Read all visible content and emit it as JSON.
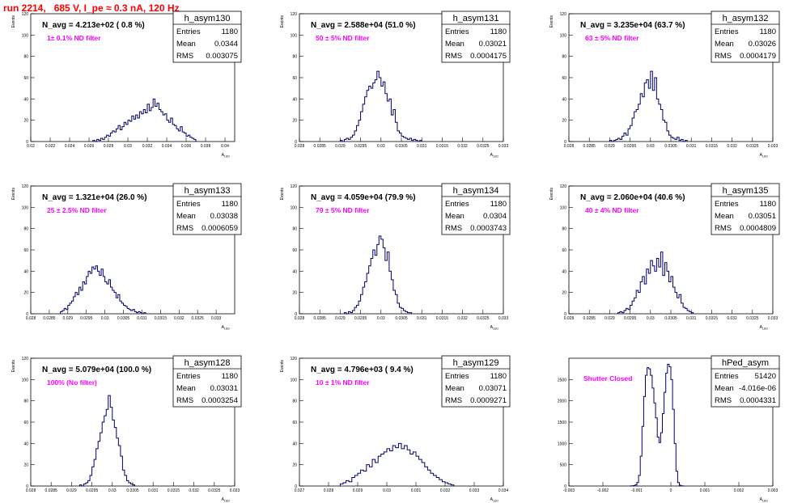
{
  "run_title": "run 2214,   685 V, I_pe ≈ 0.3 nA, 120 Hz",
  "colors": {
    "histogram": "#00006e",
    "filter_note": "#ff00ff",
    "title": "#ff0000",
    "axes": "#000000"
  },
  "chart_data": [
    {
      "type": "bar",
      "name": "h_asym130",
      "navg": "N_avg = 4.213e+02 ( 0.8 %)",
      "note": "1± 0.1% ND filter",
      "stats": [
        [
          "Entries",
          "1180"
        ],
        [
          "Mean",
          "0.0344"
        ],
        [
          "RMS",
          "0.003075"
        ]
      ],
      "ylabel": "Events",
      "xlabel": "A_{LED}",
      "xlim": [
        0.02,
        0.041
      ],
      "ylim": [
        0,
        120
      ],
      "xticks": [
        "0.02",
        "0.022",
        "0.024",
        "0.026",
        "0.028",
        "0.03",
        "0.032",
        "0.034",
        "0.036",
        "0.038",
        "0.04"
      ],
      "xtick_values": [
        0.02,
        0.022,
        0.024,
        0.026,
        0.028,
        0.03,
        0.032,
        0.034,
        0.036,
        0.038,
        0.04
      ],
      "yticks": [
        "0",
        "20",
        "40",
        "60",
        "80",
        "100",
        "120"
      ],
      "ytick_values": [
        0,
        20,
        40,
        60,
        80,
        100,
        120
      ],
      "bin_width": 0.0002,
      "bin_start": 0.0264,
      "values": [
        1,
        0,
        2,
        1,
        3,
        2,
        4,
        6,
        5,
        8,
        10,
        9,
        12,
        15,
        11,
        14,
        18,
        16,
        20,
        19,
        24,
        21,
        25,
        22,
        28,
        26,
        30,
        27,
        35,
        29,
        32,
        40,
        33,
        36,
        30,
        28,
        25,
        26,
        20,
        18,
        22,
        16,
        15,
        12,
        10,
        14,
        9,
        8,
        5,
        6,
        4,
        3,
        2
      ]
    },
    {
      "type": "bar",
      "name": "h_asym131",
      "navg": "N_avg = 2.588e+04 (51.0 %)",
      "note": "50 ± 5% ND filter",
      "stats": [
        [
          "Entries",
          "1180"
        ],
        [
          "Mean",
          "0.03021"
        ],
        [
          "RMS",
          "0.0004175"
        ]
      ],
      "ylabel": "Events",
      "xlabel": "A_{LED}",
      "xlim": [
        0.028,
        0.033
      ],
      "ylim": [
        0,
        120
      ],
      "xticks": [
        "0.028",
        "0.0285",
        "0.029",
        "0.0295",
        "0.03",
        "0.0305",
        "0.031",
        "0.0315",
        "0.032",
        "0.0325",
        "0.033"
      ],
      "xtick_values": [
        0.028,
        0.0285,
        0.029,
        0.0295,
        0.03,
        0.0305,
        0.031,
        0.0315,
        0.032,
        0.0325,
        0.033
      ],
      "yticks": [
        "0",
        "20",
        "40",
        "60",
        "80",
        "100",
        "120"
      ],
      "ytick_values": [
        0,
        20,
        40,
        60,
        80,
        100,
        120
      ],
      "bin_width": 5e-05,
      "bin_start": 0.029,
      "values": [
        1,
        0,
        2,
        3,
        2,
        4,
        6,
        10,
        15,
        20,
        28,
        35,
        42,
        48,
        52,
        50,
        55,
        58,
        66,
        60,
        52,
        56,
        45,
        38,
        40,
        25,
        30,
        18,
        10,
        8,
        5,
        4,
        3,
        2,
        3,
        1,
        2,
        1,
        0,
        1
      ]
    },
    {
      "type": "bar",
      "name": "h_asym132",
      "navg": "N_avg = 3.235e+04 (63.7 %)",
      "note": "63 ± 5% ND filter",
      "stats": [
        [
          "Entries",
          "1180"
        ],
        [
          "Mean",
          "0.03026"
        ],
        [
          "RMS",
          "0.0004179"
        ]
      ],
      "ylabel": "Events",
      "xlabel": "A_{LED}",
      "xlim": [
        0.028,
        0.033
      ],
      "ylim": [
        0,
        120
      ],
      "xticks": [
        "0.028",
        "0.0285",
        "0.029",
        "0.0295",
        "0.03",
        "0.0305",
        "0.031",
        "0.0315",
        "0.032",
        "0.0325",
        "0.033"
      ],
      "xtick_values": [
        0.028,
        0.0285,
        0.029,
        0.0295,
        0.03,
        0.0305,
        0.031,
        0.0315,
        0.032,
        0.0325,
        0.033
      ],
      "yticks": [
        "0",
        "20",
        "40",
        "60",
        "80",
        "100",
        "120"
      ],
      "ytick_values": [
        0,
        20,
        40,
        60,
        80,
        100,
        120
      ],
      "bin_width": 5e-05,
      "bin_start": 0.029,
      "values": [
        1,
        0,
        1,
        2,
        3,
        2,
        5,
        8,
        6,
        12,
        15,
        22,
        28,
        30,
        35,
        45,
        42,
        55,
        58,
        50,
        66,
        48,
        60,
        40,
        35,
        30,
        20,
        18,
        10,
        6,
        4,
        3,
        2,
        4,
        1,
        2,
        0,
        1
      ]
    },
    {
      "type": "bar",
      "name": "h_asym133",
      "navg": "N_avg = 1.321e+04 (26.0 %)",
      "note": "25 ± 2.5% ND filter",
      "stats": [
        [
          "Entries",
          "1180"
        ],
        [
          "Mean",
          "0.03038"
        ],
        [
          "RMS",
          "0.0006059"
        ]
      ],
      "ylabel": "Events",
      "xlabel": "A_{LED}",
      "xlim": [
        0.028,
        0.0335
      ],
      "ylim": [
        0,
        120
      ],
      "xticks": [
        "0.028",
        "0.0285",
        "0.029",
        "0.0295",
        "0.03",
        "0.0305",
        "0.031",
        "0.0315",
        "0.032",
        "0.0325",
        "0.033"
      ],
      "xtick_values": [
        0.028,
        0.0285,
        0.029,
        0.0295,
        0.03,
        0.0305,
        0.031,
        0.0315,
        0.032,
        0.0325,
        0.033
      ],
      "yticks": [
        "0",
        "20",
        "40",
        "60",
        "80",
        "100",
        "120"
      ],
      "ytick_values": [
        0,
        20,
        40,
        60,
        80,
        100,
        120
      ],
      "bin_width": 5e-05,
      "bin_start": 0.0288,
      "values": [
        2,
        3,
        5,
        4,
        8,
        10,
        12,
        16,
        20,
        18,
        25,
        22,
        30,
        28,
        35,
        40,
        38,
        44,
        42,
        45,
        40,
        36,
        42,
        35,
        30,
        28,
        32,
        25,
        22,
        20,
        15,
        18,
        12,
        10,
        8,
        7,
        5,
        4,
        3,
        4,
        2,
        1,
        2,
        1,
        0,
        1
      ]
    },
    {
      "type": "bar",
      "name": "h_asym134",
      "navg": "N_avg = 4.059e+04 (79.9 %)",
      "note": "79 ± 5% ND filter",
      "stats": [
        [
          "Entries",
          "1180"
        ],
        [
          "Mean",
          "0.0304"
        ],
        [
          "RMS",
          "0.0003743"
        ]
      ],
      "ylabel": "Events",
      "xlabel": "A_{LED}",
      "xlim": [
        0.028,
        0.033
      ],
      "ylim": [
        0,
        120
      ],
      "xticks": [
        "0.028",
        "0.0285",
        "0.029",
        "0.0295",
        "0.03",
        "0.0305",
        "0.031",
        "0.0315",
        "0.032",
        "0.0325",
        "0.033"
      ],
      "xtick_values": [
        0.028,
        0.0285,
        0.029,
        0.0295,
        0.03,
        0.0305,
        0.031,
        0.0315,
        0.032,
        0.0325,
        0.033
      ],
      "yticks": [
        "0",
        "20",
        "40",
        "60",
        "80",
        "100",
        "120"
      ],
      "ytick_values": [
        0,
        20,
        40,
        60,
        80,
        100,
        120
      ],
      "bin_width": 5e-05,
      "bin_start": 0.0291,
      "values": [
        1,
        0,
        2,
        1,
        3,
        6,
        8,
        12,
        18,
        25,
        30,
        38,
        45,
        52,
        60,
        55,
        65,
        73,
        70,
        62,
        50,
        58,
        40,
        32,
        22,
        18,
        10,
        6,
        5,
        3,
        2,
        1,
        1
      ]
    },
    {
      "type": "bar",
      "name": "h_asym135",
      "navg": "N_avg = 2.060e+04 (40.6 %)",
      "note": "40 ± 4% ND filter",
      "stats": [
        [
          "Entries",
          "1180"
        ],
        [
          "Mean",
          "0.03051"
        ],
        [
          "RMS",
          "0.0004809"
        ]
      ],
      "ylabel": "Events",
      "xlabel": "A_{LED}",
      "xlim": [
        0.028,
        0.033
      ],
      "ylim": [
        0,
        120
      ],
      "xticks": [
        "0.028",
        "0.0285",
        "0.029",
        "0.0295",
        "0.03",
        "0.0305",
        "0.031",
        "0.0315",
        "0.032",
        "0.0325",
        "0.033"
      ],
      "xtick_values": [
        0.028,
        0.0285,
        0.029,
        0.0295,
        0.03,
        0.0305,
        0.031,
        0.0315,
        0.032,
        0.0325,
        0.033
      ],
      "yticks": [
        "0",
        "20",
        "40",
        "60",
        "80",
        "100",
        "120"
      ],
      "ytick_values": [
        0,
        20,
        40,
        60,
        80,
        100,
        120
      ],
      "bin_width": 5e-05,
      "bin_start": 0.0292,
      "values": [
        1,
        2,
        1,
        3,
        5,
        4,
        8,
        12,
        15,
        22,
        20,
        30,
        35,
        28,
        42,
        38,
        50,
        45,
        40,
        52,
        44,
        58,
        36,
        48,
        40,
        30,
        35,
        25,
        20,
        15,
        18,
        10,
        6,
        5,
        3,
        2,
        1
      ]
    },
    {
      "type": "bar",
      "name": "h_asym128",
      "navg": "N_avg = 5.079e+04 (100.0 %)",
      "note": "100% (No filter)",
      "stats": [
        [
          "Entries",
          "1180"
        ],
        [
          "Mean",
          "0.03031"
        ],
        [
          "RMS",
          "0.0003254"
        ]
      ],
      "ylabel": "Events",
      "xlabel": "A_{LED}",
      "xlim": [
        0.028,
        0.033
      ],
      "ylim": [
        0,
        120
      ],
      "xticks": [
        "0.028",
        "0.0285",
        "0.029",
        "0.0295",
        "0.03",
        "0.0305",
        "0.031",
        "0.0315",
        "0.032",
        "0.0325",
        "0.033"
      ],
      "xtick_values": [
        0.028,
        0.0285,
        0.029,
        0.0295,
        0.03,
        0.0305,
        0.031,
        0.0315,
        0.032,
        0.0325,
        0.033
      ],
      "yticks": [
        "0",
        "20",
        "40",
        "60",
        "80",
        "100",
        "120"
      ],
      "ytick_values": [
        0,
        20,
        40,
        60,
        80,
        100,
        120
      ],
      "bin_width": 5e-05,
      "bin_start": 0.0292,
      "values": [
        1,
        0,
        2,
        3,
        5,
        10,
        18,
        25,
        35,
        42,
        50,
        60,
        66,
        72,
        85,
        74,
        62,
        55,
        45,
        38,
        28,
        15,
        10,
        5,
        3,
        2,
        1
      ]
    },
    {
      "type": "bar",
      "name": "h_asym129",
      "navg": "N_avg = 4.796e+03 ( 9.4 %)",
      "note": "10 ± 1% ND filter",
      "stats": [
        [
          "Entries",
          "1180"
        ],
        [
          "Mean",
          "0.03071"
        ],
        [
          "RMS",
          "0.0009271"
        ]
      ],
      "ylabel": "Events",
      "xlabel": "A_{LED}",
      "xlim": [
        0.027,
        0.034
      ],
      "ylim": [
        0,
        120
      ],
      "xticks": [
        "0.027",
        "0.028",
        "0.029",
        "0.03",
        "0.031",
        "0.032",
        "0.033",
        "0.034"
      ],
      "xtick_values": [
        0.027,
        0.028,
        0.029,
        0.03,
        0.031,
        0.032,
        0.033,
        0.034
      ],
      "yticks": [
        "0",
        "20",
        "40",
        "60",
        "80",
        "100",
        "120"
      ],
      "ytick_values": [
        0,
        20,
        40,
        60,
        80,
        100,
        120
      ],
      "bin_width": 0.0001,
      "bin_start": 0.0284,
      "values": [
        2,
        3,
        5,
        4,
        8,
        10,
        12,
        15,
        14,
        20,
        18,
        25,
        22,
        28,
        30,
        32,
        35,
        33,
        38,
        36,
        40,
        35,
        38,
        34,
        30,
        32,
        28,
        25,
        22,
        18,
        15,
        12,
        10,
        8,
        6,
        4,
        3,
        2,
        1
      ]
    },
    {
      "type": "bar",
      "name": "hPed_asym",
      "navg": "",
      "note": "Shutter Closed",
      "stats": [
        [
          "Entries",
          "51420"
        ],
        [
          "Mean",
          "-4.016e-06"
        ],
        [
          "RMS",
          "0.0004331"
        ]
      ],
      "ylabel": "",
      "xlabel": "A_{LED}",
      "xlim": [
        -0.003,
        0.003
      ],
      "ylim": [
        0,
        3000
      ],
      "xticks": [
        "-0.003",
        "-0.002",
        "-0.001",
        "0",
        "0.001",
        "0.002",
        "0.003"
      ],
      "xtick_values": [
        -0.003,
        -0.002,
        -0.001,
        0,
        0.001,
        0.002,
        0.003
      ],
      "yticks": [
        "0",
        "500",
        "1000",
        "1500",
        "2000",
        "2500"
      ],
      "ytick_values": [
        0,
        500,
        1000,
        1500,
        2000,
        2500
      ],
      "bin_width": 5e-05,
      "bin_start": -0.0012,
      "values": [
        2,
        5,
        10,
        30,
        80,
        250,
        700,
        1400,
        2100,
        2600,
        2780,
        2750,
        2600,
        2300,
        1950,
        1600,
        1150,
        1020,
        1250,
        1700,
        2200,
        2650,
        2860,
        2800,
        2500,
        1800,
        1000,
        350,
        80,
        20,
        5,
        1
      ]
    }
  ]
}
